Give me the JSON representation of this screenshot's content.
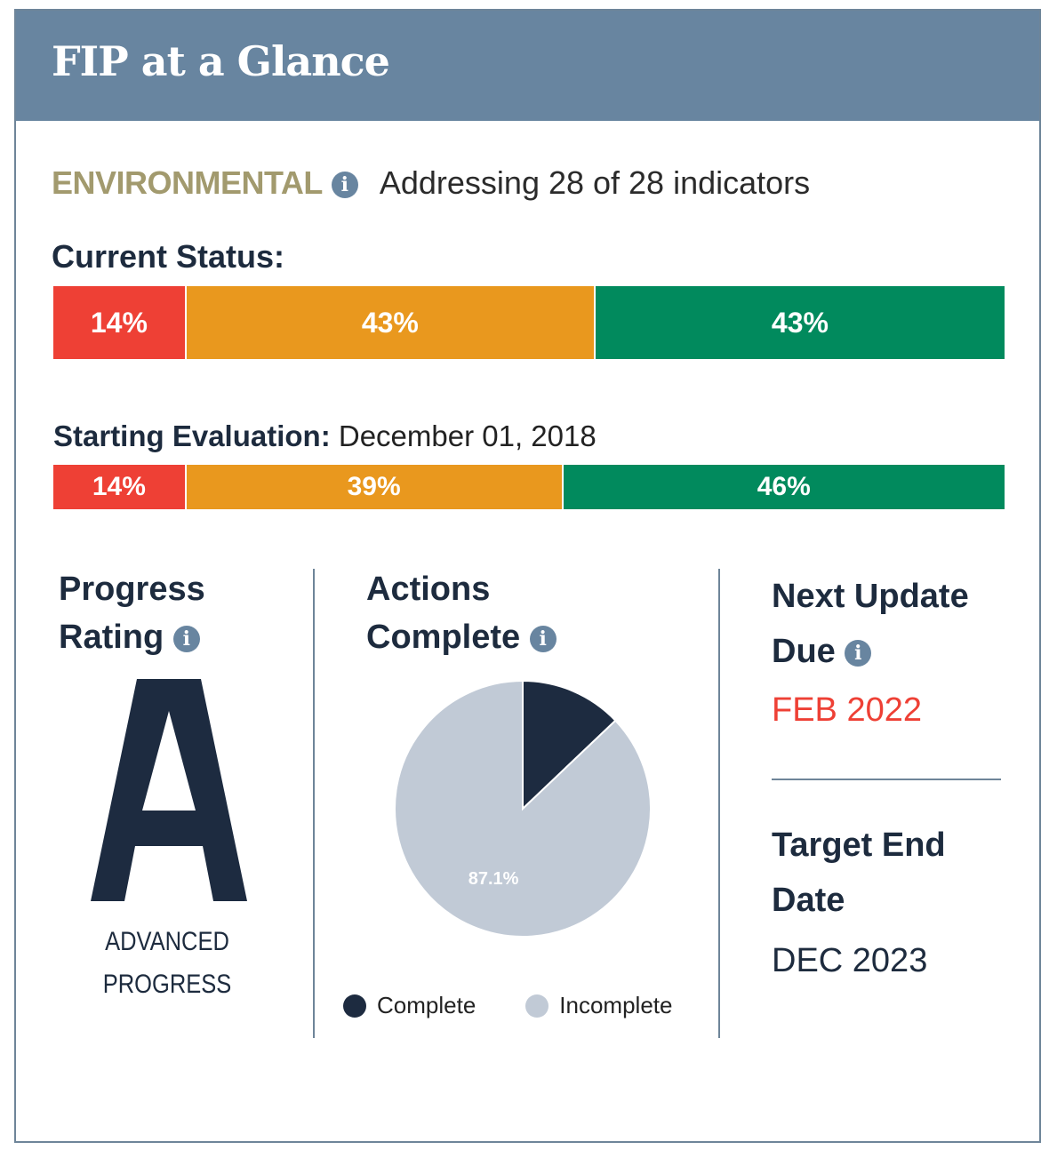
{
  "header": {
    "title": "FIP at a Glance"
  },
  "environmental": {
    "label": "ENVIRONMENTAL",
    "info_icon": "info-icon",
    "description": "Addressing 28 of 28 indicators"
  },
  "current_status": {
    "title": "Current Status:",
    "segments": [
      {
        "label": "14%",
        "value": 14,
        "color": "#ee4035"
      },
      {
        "label": "43%",
        "value": 43,
        "color": "#e9981e"
      },
      {
        "label": "43%",
        "value": 43,
        "color": "#018a5d"
      }
    ]
  },
  "starting_evaluation": {
    "title": "Starting Evaluation:",
    "date": "December 01, 2018",
    "segments": [
      {
        "label": "14%",
        "value": 14,
        "color": "#ee4035"
      },
      {
        "label": "39%",
        "value": 39,
        "color": "#e9981e"
      },
      {
        "label": "46%",
        "value": 46,
        "color": "#018a5d"
      }
    ]
  },
  "progress_rating": {
    "title_line1": "Progress",
    "title_line2": "Rating",
    "grade": "A",
    "caption_line1": "ADVANCED",
    "caption_line2": "PROGRESS"
  },
  "actions_complete": {
    "title_line1": "Actions",
    "title_line2": "Complete",
    "slice_label": "87.1%",
    "legend_complete": "Complete",
    "legend_incomplete": "Incomplete",
    "complete_color": "#1d2b40",
    "incomplete_color": "#c1cad6"
  },
  "next_update": {
    "title_line1": "Next Update",
    "title_line2": "Due",
    "value": "FEB 2022",
    "value_color": "#ee4035"
  },
  "target_end": {
    "title_line1": "Target End",
    "title_line2": "Date",
    "value": "DEC 2023"
  },
  "chart_data": {
    "type": "pie",
    "labels": [
      "Complete",
      "Incomplete"
    ],
    "values": [
      12.9,
      87.1
    ],
    "data_labels": [
      "",
      "87.1%"
    ],
    "legend": "bottom"
  }
}
